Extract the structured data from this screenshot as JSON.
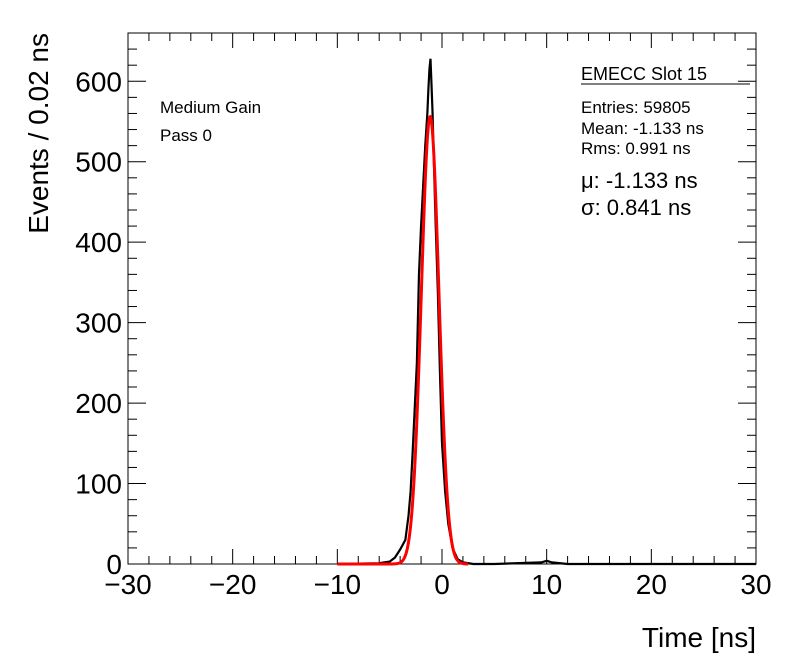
{
  "chart_data": {
    "type": "line",
    "title": "EMECC Slot 15",
    "xlabel": "Time [ns]",
    "ylabel": "Events / 0.02 ns",
    "xlim": [
      -30,
      30
    ],
    "ylim": [
      0,
      660
    ],
    "x_ticks": [
      -30,
      -20,
      -10,
      0,
      10,
      20,
      30
    ],
    "x_tick_labels": [
      "−30",
      "−20",
      "−10",
      "0",
      "10",
      "20",
      "30"
    ],
    "y_ticks": [
      0,
      100,
      200,
      300,
      400,
      500,
      600
    ],
    "y_tick_labels": [
      "0",
      "100",
      "200",
      "300",
      "400",
      "500",
      "600"
    ],
    "grid": false,
    "annotations": {
      "gain": "Medium Gain",
      "pass": "Pass 0",
      "entries": "Entries: 59805",
      "mean": "Mean: -1.133 ns",
      "rms": "Rms: 0.991 ns",
      "mu": "μ: -1.133 ns",
      "sigma": "σ: 0.841 ns"
    },
    "series": [
      {
        "kind": "histogram",
        "color": "#000000",
        "x": [
          -10,
          -6,
          -5,
          -4.5,
          -4,
          -3.5,
          -3.2,
          -3,
          -2.8,
          -2.6,
          -2.4,
          -2.2,
          -2,
          -1.8,
          -1.6,
          -1.4,
          -1.3,
          -1.2,
          -1.1,
          -1,
          -0.9,
          -0.8,
          -0.6,
          -0.4,
          -0.2,
          0,
          0.3,
          0.6,
          1,
          1.5,
          2,
          3,
          5,
          9.5,
          10,
          10.5,
          12,
          30
        ],
        "y": [
          0,
          1,
          3,
          8,
          18,
          30,
          60,
          90,
          140,
          195,
          250,
          360,
          420,
          470,
          520,
          560,
          590,
          615,
          628,
          595,
          560,
          510,
          420,
          340,
          240,
          150,
          90,
          50,
          20,
          6,
          2,
          0,
          0,
          2,
          4,
          2,
          0,
          0
        ]
      },
      {
        "kind": "gaussian-fit",
        "color": "#ff0000",
        "mu": -1.133,
        "sigma": 0.841,
        "amplitude": 556,
        "x_range": [
          -10,
          2.5
        ]
      }
    ]
  }
}
